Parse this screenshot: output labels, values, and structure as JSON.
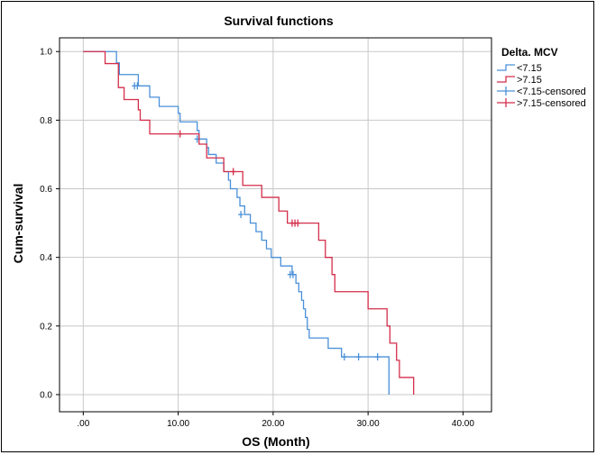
{
  "chart_data": {
    "type": "line",
    "title": "Survival functions",
    "xlabel": "OS (Month)",
    "ylabel": "Cum-survival",
    "xlim": [
      -2.5,
      43
    ],
    "ylim": [
      -0.05,
      1.04
    ],
    "x_ticks": [
      0,
      10,
      20,
      30,
      40
    ],
    "x_tick_labels": [
      ".00",
      "10.00",
      "20.00",
      "30.00",
      "40.00"
    ],
    "y_ticks": [
      0,
      0.2,
      0.4,
      0.6,
      0.8,
      1.0
    ],
    "y_tick_labels": [
      "0.0",
      "0.2",
      "0.4",
      "0.6",
      "0.8",
      "1.0"
    ],
    "grid": true,
    "legend_title": "Delta. MCV",
    "legend_position": "top-right",
    "colors": {
      "lt": "#4a90d9",
      "gt": "#d42e4a"
    },
    "series": [
      {
        "name": "<7.15",
        "key": "lt",
        "steps": [
          [
            0,
            1.0
          ],
          [
            3.5,
            0.967
          ],
          [
            3.8,
            0.933
          ],
          [
            5.8,
            0.9
          ],
          [
            7.0,
            0.867
          ],
          [
            8.0,
            0.84
          ],
          [
            10.0,
            0.82
          ],
          [
            10.2,
            0.795
          ],
          [
            12.0,
            0.77
          ],
          [
            12.2,
            0.745
          ],
          [
            13.0,
            0.72
          ],
          [
            13.2,
            0.7
          ],
          [
            14.0,
            0.675
          ],
          [
            14.8,
            0.65
          ],
          [
            15.3,
            0.625
          ],
          [
            15.5,
            0.6
          ],
          [
            16.2,
            0.575
          ],
          [
            16.5,
            0.55
          ],
          [
            17.0,
            0.525
          ],
          [
            17.6,
            0.5
          ],
          [
            18.2,
            0.475
          ],
          [
            18.8,
            0.45
          ],
          [
            19.3,
            0.425
          ],
          [
            19.8,
            0.4
          ],
          [
            20.8,
            0.375
          ],
          [
            22.0,
            0.35
          ],
          [
            22.4,
            0.325
          ],
          [
            22.7,
            0.3
          ],
          [
            23.0,
            0.275
          ],
          [
            23.2,
            0.25
          ],
          [
            23.4,
            0.225
          ],
          [
            23.6,
            0.19
          ],
          [
            23.8,
            0.165
          ],
          [
            25.8,
            0.135
          ],
          [
            27.2,
            0.11
          ],
          [
            32.2,
            0.0
          ]
        ],
        "end_x": 32.2,
        "censored": [
          [
            5.4,
            0.9
          ],
          [
            5.7,
            0.9
          ],
          [
            12.0,
            0.745
          ],
          [
            16.6,
            0.525
          ],
          [
            21.8,
            0.35
          ],
          [
            22.1,
            0.35
          ],
          [
            27.5,
            0.11
          ],
          [
            29.0,
            0.11
          ],
          [
            31.0,
            0.11
          ]
        ]
      },
      {
        "name": ">7.15",
        "key": "gt",
        "steps": [
          [
            0,
            1.0
          ],
          [
            2.3,
            0.965
          ],
          [
            3.7,
            0.895
          ],
          [
            4.3,
            0.86
          ],
          [
            5.8,
            0.83
          ],
          [
            6.0,
            0.8
          ],
          [
            7.0,
            0.76
          ],
          [
            10.2,
            0.76
          ],
          [
            12.2,
            0.73
          ],
          [
            13.0,
            0.69
          ],
          [
            14.8,
            0.65
          ],
          [
            16.8,
            0.61
          ],
          [
            18.8,
            0.575
          ],
          [
            20.6,
            0.535
          ],
          [
            21.5,
            0.5
          ],
          [
            24.8,
            0.45
          ],
          [
            25.5,
            0.4
          ],
          [
            26.2,
            0.35
          ],
          [
            26.5,
            0.3
          ],
          [
            30.0,
            0.25
          ],
          [
            32.0,
            0.2
          ],
          [
            32.3,
            0.15
          ],
          [
            33.0,
            0.1
          ],
          [
            33.3,
            0.05
          ],
          [
            34.8,
            0.0
          ]
        ],
        "end_x": 34.8,
        "censored": [
          [
            10.2,
            0.76
          ],
          [
            15.8,
            0.65
          ],
          [
            22.0,
            0.5
          ],
          [
            22.3,
            0.5
          ],
          [
            22.6,
            0.5
          ]
        ]
      }
    ],
    "legend": [
      {
        "label": "<7.15",
        "style": "step",
        "key": "lt"
      },
      {
        "label": ">7.15",
        "style": "step",
        "key": "gt"
      },
      {
        "label": "<7.15-censored",
        "style": "cross",
        "key": "lt"
      },
      {
        "label": ">7.15-censored",
        "style": "cross",
        "key": "gt"
      }
    ]
  }
}
